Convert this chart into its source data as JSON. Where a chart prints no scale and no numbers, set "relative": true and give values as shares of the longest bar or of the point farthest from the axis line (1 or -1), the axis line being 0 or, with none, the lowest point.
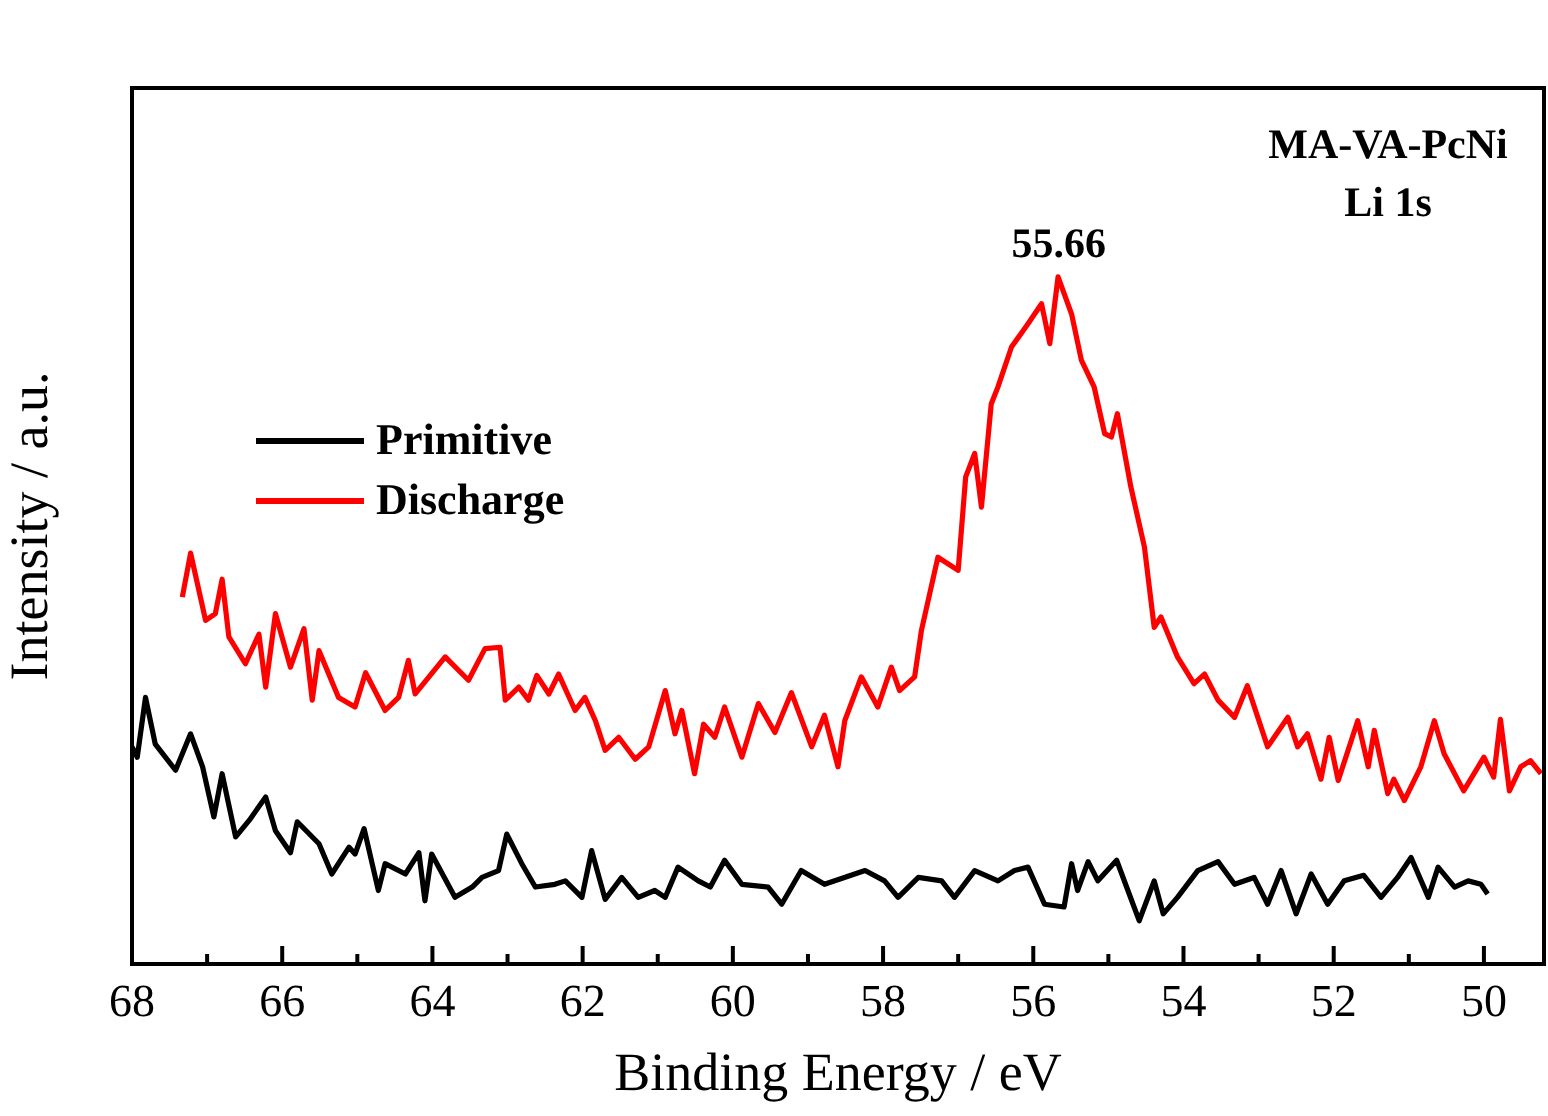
{
  "chart_data": {
    "type": "line",
    "relative": true,
    "xlabel": "Binding Energy / eV",
    "ylabel": "Intensity / a.u.",
    "xlim": [
      68,
      49.2
    ],
    "xticks": [
      68,
      {
        "value": 67,
        "label": null
      },
      66,
      {
        "value": 65,
        "label": null
      },
      64,
      {
        "value": 63,
        "label": null
      },
      62,
      {
        "value": 61,
        "label": null
      },
      60,
      {
        "value": 59,
        "label": null
      },
      58,
      {
        "value": 57,
        "label": null
      },
      56,
      {
        "value": 55,
        "label": null
      },
      54,
      {
        "value": 53,
        "label": null
      },
      52,
      {
        "value": 51,
        "label": null
      },
      50
    ],
    "grid": false,
    "legend": "left",
    "marker": "none",
    "line_style": "solid",
    "annotations": [
      "MA-VA-PcNi",
      "Li 1s",
      {
        "text": "55.66",
        "x": 55.66,
        "y": 1
      }
    ],
    "series": [
      {
        "name": "Primitive",
        "color": "#000000",
        "x": [
          68.0,
          67.93,
          67.82,
          67.69,
          67.42,
          67.22,
          67.06,
          66.91,
          66.8,
          66.62,
          66.44,
          66.22,
          66.09,
          65.89,
          65.8,
          65.51,
          65.34,
          65.11,
          65.03,
          64.91,
          64.72,
          64.63,
          64.36,
          64.18,
          64.1,
          64.01,
          63.7,
          63.47,
          63.34,
          63.12,
          63.01,
          62.81,
          62.63,
          62.37,
          62.23,
          62.01,
          61.88,
          61.7,
          61.48,
          61.26,
          61.04,
          60.9,
          60.73,
          60.46,
          60.3,
          60.11,
          59.88,
          59.53,
          59.35,
          59.09,
          58.78,
          58.24,
          57.98,
          57.8,
          57.53,
          57.22,
          57.05,
          56.78,
          56.47,
          56.25,
          56.07,
          55.85,
          55.59,
          55.49,
          55.41,
          55.27,
          55.14,
          54.89,
          54.74,
          54.59,
          54.39,
          54.27,
          54.08,
          53.81,
          53.54,
          53.32,
          53.06,
          52.88,
          52.7,
          52.5,
          52.3,
          52.08,
          51.86,
          51.6,
          51.37,
          51.15,
          50.97,
          50.74,
          50.61,
          50.39,
          50.21,
          50.04,
          49.95
        ],
        "values": [
          0.316,
          0.301,
          0.388,
          0.32,
          0.282,
          0.335,
          0.287,
          0.214,
          0.277,
          0.185,
          0.209,
          0.243,
          0.194,
          0.162,
          0.207,
          0.175,
          0.131,
          0.17,
          0.16,
          0.197,
          0.107,
          0.146,
          0.131,
          0.162,
          0.092,
          0.16,
          0.097,
          0.112,
          0.126,
          0.136,
          0.189,
          0.146,
          0.112,
          0.116,
          0.121,
          0.097,
          0.165,
          0.094,
          0.126,
          0.097,
          0.107,
          0.097,
          0.141,
          0.121,
          0.112,
          0.151,
          0.116,
          0.112,
          0.087,
          0.136,
          0.116,
          0.136,
          0.121,
          0.097,
          0.126,
          0.121,
          0.097,
          0.136,
          0.121,
          0.136,
          0.141,
          0.087,
          0.083,
          0.146,
          0.107,
          0.149,
          0.121,
          0.151,
          0.107,
          0.063,
          0.121,
          0.073,
          0.097,
          0.136,
          0.149,
          0.116,
          0.126,
          0.087,
          0.136,
          0.073,
          0.131,
          0.087,
          0.121,
          0.129,
          0.097,
          0.126,
          0.155,
          0.097,
          0.141,
          0.112,
          0.121,
          0.116,
          0.102
        ]
      },
      {
        "name": "Discharge",
        "color": "#ff0000",
        "x": [
          67.33,
          67.22,
          67.02,
          66.89,
          66.8,
          66.71,
          66.49,
          66.31,
          66.22,
          66.09,
          65.89,
          65.71,
          65.6,
          65.51,
          65.25,
          65.03,
          64.89,
          64.63,
          64.45,
          64.32,
          64.23,
          63.83,
          63.52,
          63.3,
          63.1,
          63.03,
          62.85,
          62.72,
          62.61,
          62.45,
          62.32,
          62.1,
          61.97,
          61.83,
          61.7,
          61.52,
          61.3,
          61.12,
          60.9,
          60.77,
          60.68,
          60.51,
          60.39,
          60.24,
          60.11,
          59.88,
          59.66,
          59.44,
          59.22,
          58.95,
          58.78,
          58.6,
          58.51,
          58.29,
          58.07,
          57.89,
          57.78,
          57.58,
          57.49,
          57.27,
          57.0,
          56.9,
          56.78,
          56.69,
          56.56,
          56.47,
          56.29,
          56.07,
          55.89,
          55.78,
          55.67,
          55.49,
          55.36,
          55.19,
          55.05,
          54.96,
          54.88,
          54.7,
          54.52,
          54.39,
          54.3,
          54.08,
          53.86,
          53.72,
          53.54,
          53.32,
          53.15,
          52.88,
          52.61,
          52.48,
          52.35,
          52.17,
          52.06,
          51.94,
          51.68,
          51.54,
          51.46,
          51.28,
          51.2,
          51.06,
          50.84,
          50.66,
          50.53,
          50.27,
          50.0,
          49.87,
          49.78,
          49.66,
          49.51,
          49.38,
          49.24
        ],
        "values": [
          0.534,
          0.598,
          0.5,
          0.51,
          0.56,
          0.476,
          0.437,
          0.48,
          0.403,
          0.51,
          0.432,
          0.488,
          0.384,
          0.456,
          0.388,
          0.374,
          0.424,
          0.369,
          0.388,
          0.442,
          0.393,
          0.447,
          0.413,
          0.459,
          0.461,
          0.384,
          0.403,
          0.384,
          0.42,
          0.393,
          0.422,
          0.369,
          0.388,
          0.354,
          0.311,
          0.33,
          0.298,
          0.316,
          0.398,
          0.335,
          0.369,
          0.277,
          0.349,
          0.33,
          0.374,
          0.301,
          0.379,
          0.337,
          0.395,
          0.316,
          0.362,
          0.287,
          0.354,
          0.418,
          0.374,
          0.432,
          0.398,
          0.418,
          0.485,
          0.592,
          0.573,
          0.709,
          0.743,
          0.665,
          0.815,
          0.84,
          0.898,
          0.932,
          0.961,
          0.903,
          1.0,
          0.946,
          0.879,
          0.84,
          0.772,
          0.767,
          0.801,
          0.694,
          0.607,
          0.49,
          0.505,
          0.447,
          0.408,
          0.422,
          0.384,
          0.359,
          0.405,
          0.316,
          0.359,
          0.316,
          0.335,
          0.269,
          0.33,
          0.267,
          0.354,
          0.287,
          0.34,
          0.248,
          0.269,
          0.238,
          0.287,
          0.354,
          0.306,
          0.252,
          0.301,
          0.272,
          0.356,
          0.252,
          0.287,
          0.296,
          0.277
        ]
      }
    ]
  }
}
